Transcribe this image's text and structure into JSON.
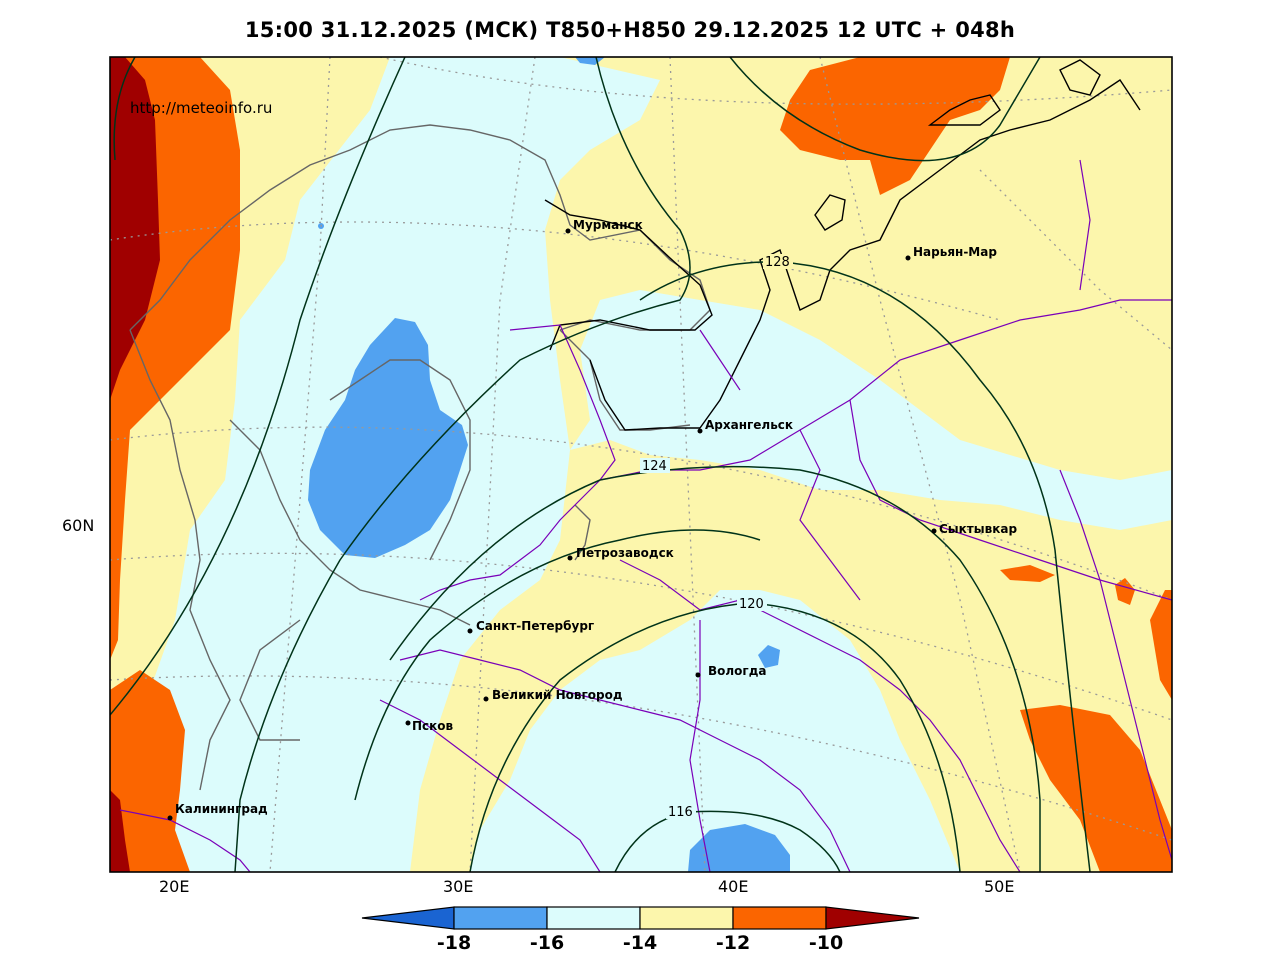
{
  "title": "15:00 31.12.2025 (МСК) T850+H850 29.12.2025 12 UTC + 048h",
  "watermark": "http://meteoinfo.ru",
  "lon_labels": [
    "20E",
    "30E",
    "40E",
    "50E"
  ],
  "lat_labels": [
    "60N"
  ],
  "cities": [
    {
      "name": "Мурманск"
    },
    {
      "name": "Нарьян-Мар"
    },
    {
      "name": "Архангельск"
    },
    {
      "name": "Сыктывкар"
    },
    {
      "name": "Петрозаводск"
    },
    {
      "name": "Санкт-Петербург"
    },
    {
      "name": "Вологда"
    },
    {
      "name": "Великий Новгород"
    },
    {
      "name": "Псков"
    },
    {
      "name": "Калининград"
    }
  ],
  "isohypse_labels": [
    "128",
    "124",
    "120",
    "116"
  ],
  "colorbar": {
    "ticks": [
      "-18",
      "-16",
      "-14",
      "-12",
      "-10"
    ],
    "colors": [
      "#1a64d2",
      "#52a2f0",
      "#dcfcfc",
      "#fcf6ac",
      "#fb6500",
      "#a00000"
    ]
  },
  "colors": {
    "very_cold": "#52a2f0",
    "cold": "#dcfcfc",
    "mild": "#fcf6ac",
    "warm": "#fb6500",
    "hot": "#a00000",
    "isohypse": "#003319",
    "border": "#7a00b8",
    "coast": "#666666"
  }
}
